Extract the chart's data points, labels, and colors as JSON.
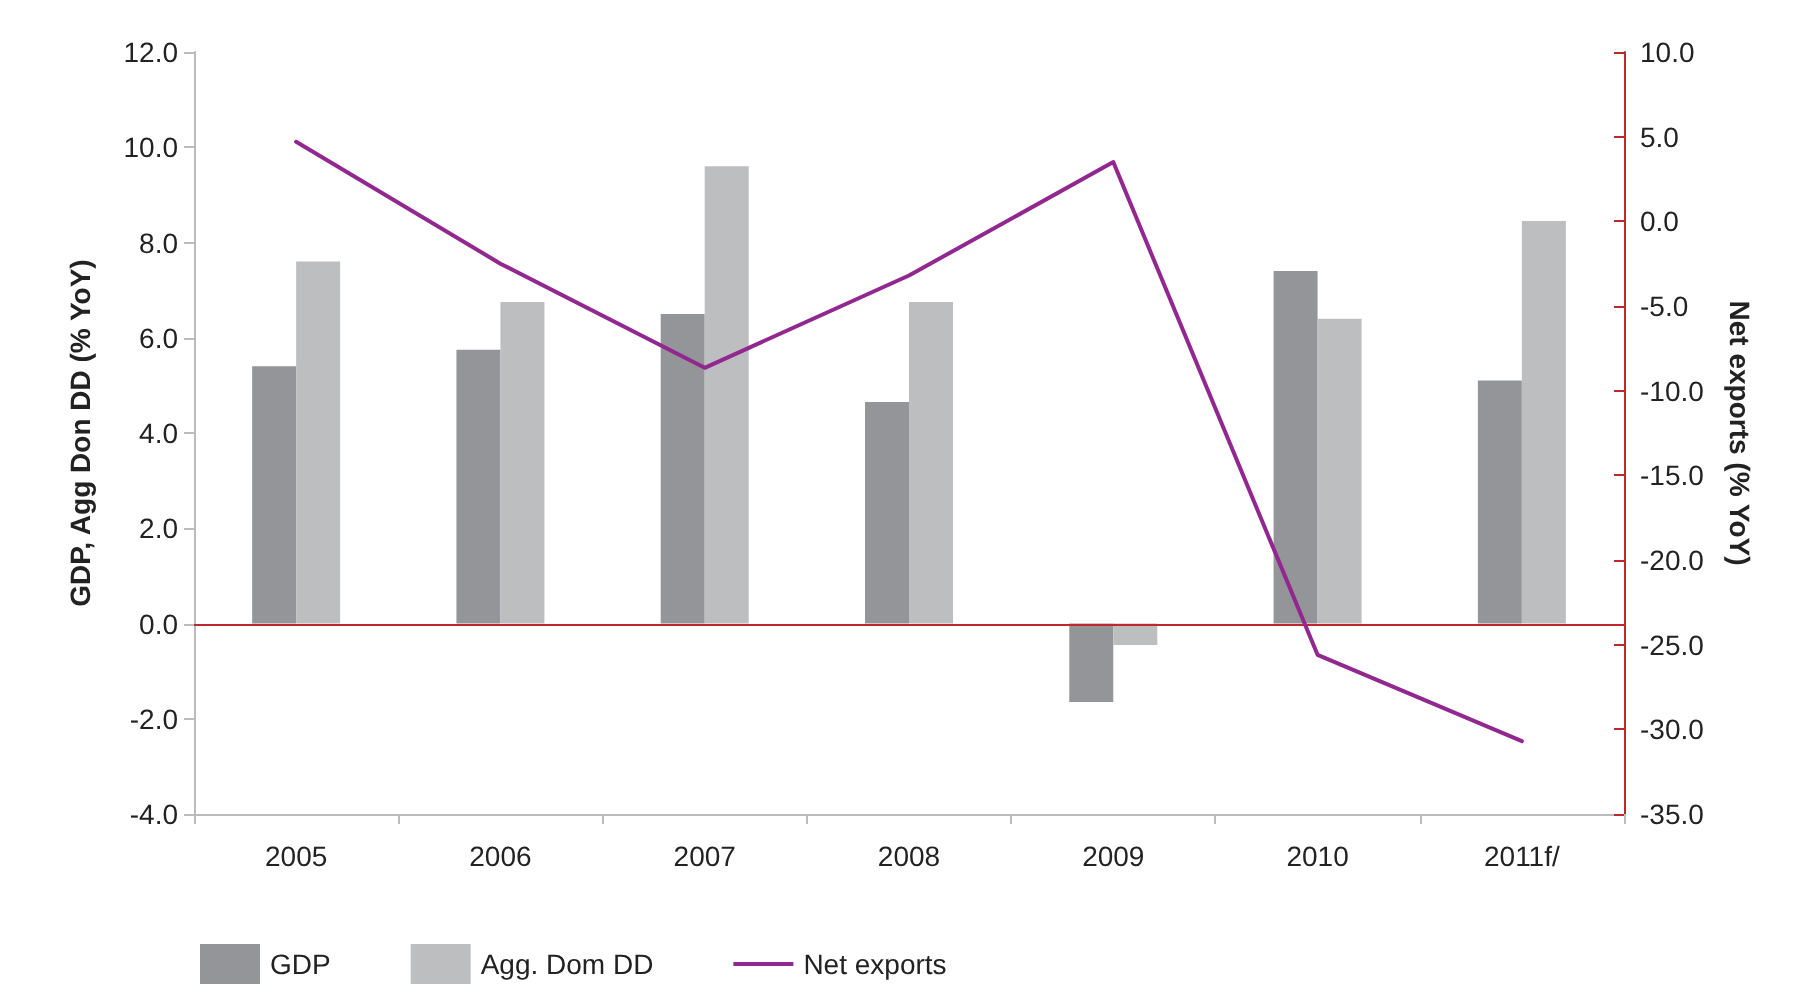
{
  "chart_data": {
    "type": "bar",
    "categories": [
      "2005",
      "2006",
      "2007",
      "2008",
      "2009",
      "2010",
      "2011f/"
    ],
    "ylabel": "GDP, Agg Don DD (% YoY)",
    "y2label": "Net exports (% YoY)",
    "series": [
      {
        "name": "GDP",
        "color": "#939598",
        "values": [
          5.4,
          5.75,
          6.5,
          4.65,
          -1.65,
          7.4,
          5.1
        ]
      },
      {
        "name": "Agg. Dom DD",
        "color": "#bcbec0",
        "values": [
          7.6,
          6.75,
          9.6,
          6.75,
          -0.45,
          6.4,
          8.45
        ]
      },
      {
        "name": "Net exports",
        "type": "line",
        "axis": "y2",
        "color": "#92278f",
        "values": [
          4.7,
          -2.5,
          -8.65,
          -3.2,
          3.5,
          -25.6,
          -30.7
        ]
      }
    ],
    "ylim": [
      -4,
      12
    ],
    "yticks": [
      {
        "value": -4,
        "label": "-4.0"
      },
      {
        "value": -2,
        "label": "-2.0"
      },
      {
        "value": 0,
        "label": "0.0"
      },
      {
        "value": 2,
        "label": "2.0"
      },
      {
        "value": 4,
        "label": "4.0"
      },
      {
        "value": 6,
        "label": "6.0"
      },
      {
        "value": 8,
        "label": "8.0"
      },
      {
        "value": 10,
        "label": "10.0"
      },
      {
        "value": 12,
        "label": "12.0"
      }
    ],
    "y2lim": [
      -35,
      10
    ],
    "y2ticks": [
      {
        "value": -35,
        "label": "-35.0"
      },
      {
        "value": -30,
        "label": "-30.0"
      },
      {
        "value": -25,
        "label": "-25.0"
      },
      {
        "value": -20,
        "label": "-20.0"
      },
      {
        "value": -15,
        "label": "-15.0"
      },
      {
        "value": -10,
        "label": "-10.0"
      },
      {
        "value": -5,
        "label": "-5.0"
      },
      {
        "value": 0,
        "label": "0.0"
      },
      {
        "value": 5,
        "label": "5.0"
      },
      {
        "value": 10,
        "label": "10.0"
      }
    ],
    "ref_lines": [
      {
        "axis": "y",
        "value": 0,
        "color": "#c0272d"
      }
    ],
    "grid": false,
    "legend": "bottom left",
    "marker": "none",
    "line_style": "solid"
  }
}
